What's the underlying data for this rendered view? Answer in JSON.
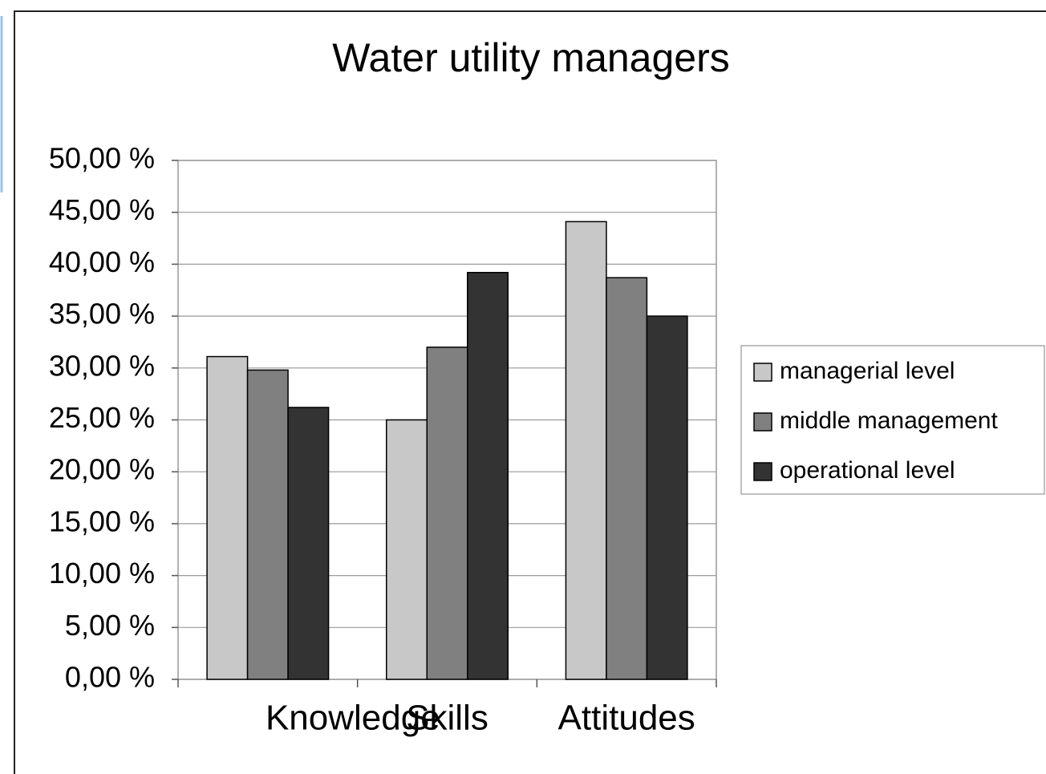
{
  "chart_data": {
    "type": "bar",
    "title": "Water utility managers",
    "categories": [
      "Knowledge",
      "Skills",
      "Attitudes"
    ],
    "series": [
      {
        "name": "managerial level",
        "color": "#c8c8c8",
        "values": [
          31.1,
          25.0,
          44.1
        ]
      },
      {
        "name": "middle management",
        "color": "#808080",
        "values": [
          29.8,
          32.0,
          38.7
        ]
      },
      {
        "name": "operational level",
        "color": "#333333",
        "values": [
          26.2,
          39.2,
          35.0
        ]
      }
    ],
    "ylim": [
      0,
      50
    ],
    "yticks": [
      {
        "value": 0,
        "label": "0,00 %"
      },
      {
        "value": 5,
        "label": "5,00 %"
      },
      {
        "value": 10,
        "label": "10,00 %"
      },
      {
        "value": 15,
        "label": "15,00 %"
      },
      {
        "value": 20,
        "label": "20,00 %"
      },
      {
        "value": 25,
        "label": "25,00 %"
      },
      {
        "value": 30,
        "label": "30,00 %"
      },
      {
        "value": 35,
        "label": "35,00 %"
      },
      {
        "value": 40,
        "label": "40,00 %"
      },
      {
        "value": 45,
        "label": "45,00 %"
      },
      {
        "value": 50,
        "label": "50,00 %"
      }
    ],
    "grid": true,
    "legend": "right"
  }
}
